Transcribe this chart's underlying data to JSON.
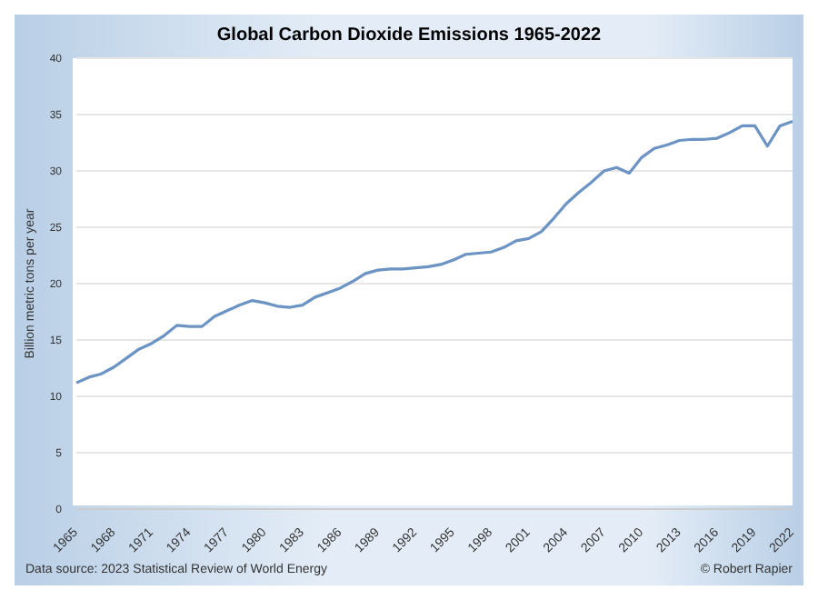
{
  "chart_data": {
    "type": "line",
    "title": "Global Carbon Dioxide Emissions 1965-2022",
    "ylabel": "Billion metric tons per year",
    "categories": [
      "1965",
      null,
      null,
      "1968",
      null,
      null,
      "1971",
      null,
      null,
      "1974",
      null,
      null,
      "1977",
      null,
      null,
      "1980",
      null,
      null,
      "1983",
      null,
      null,
      "1986",
      null,
      null,
      "1989",
      null,
      null,
      "1992",
      null,
      null,
      "1995",
      null,
      null,
      "1998",
      null,
      null,
      "2001",
      null,
      null,
      "2004",
      null,
      null,
      "2007",
      null,
      null,
      "2010",
      null,
      null,
      "2013",
      null,
      null,
      "2016",
      null,
      null,
      "2019",
      null,
      null,
      "2022"
    ],
    "series": [
      {
        "color": "#6b93c3",
        "values": [
          11.2,
          11.7,
          12.0,
          12.6,
          13.4,
          14.2,
          14.7,
          15.4,
          16.3,
          16.2,
          16.2,
          17.1,
          17.6,
          18.1,
          18.5,
          18.3,
          18.0,
          17.9,
          18.1,
          18.8,
          19.2,
          19.6,
          20.2,
          20.9,
          21.2,
          21.3,
          21.3,
          21.4,
          21.5,
          21.7,
          22.1,
          22.6,
          22.7,
          22.8,
          23.2,
          23.8,
          24.0,
          24.6,
          25.8,
          27.1,
          28.1,
          29.0,
          30.0,
          30.3,
          29.8,
          31.2,
          32.0,
          32.3,
          32.7,
          32.8,
          32.8,
          32.9,
          33.4,
          34.0,
          34.0,
          32.2,
          34.0,
          34.4
        ]
      }
    ],
    "ylim": [
      0,
      40
    ],
    "yticks": [
      0,
      5,
      10,
      15,
      20,
      25,
      30,
      35,
      40
    ],
    "grid": "y",
    "marker": "none",
    "line_style": "solid",
    "annotations": [
      "Data source: 2023 Statistical Review of World Energy",
      "© Robert Rapier"
    ]
  }
}
